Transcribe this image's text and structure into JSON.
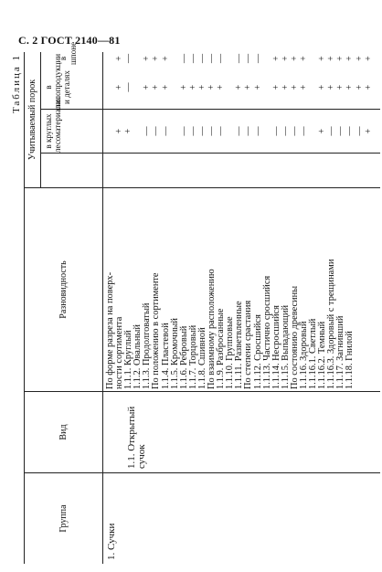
{
  "page_header": "С. 2 ГОСТ 2140—81",
  "table_label": "Таблица 1",
  "columns": {
    "group": "Группа",
    "kind": "Вид",
    "variety": "Разновидность",
    "threshold": "Учитываемый порок",
    "logs": "в круглых лесоматериалах",
    "sawn": "в пилопродукции и деталях",
    "veneer": "в шпоне"
  },
  "group_value": "1. Сучки",
  "kind_value": "1.1. Открытый сучок",
  "rows": [
    {
      "label": "По форме разреза на поверх-",
      "logs": "",
      "sawn": "",
      "veneer": ""
    },
    {
      "label": "ности сортимента",
      "logs": "+",
      "sawn": "+",
      "veneer": "+"
    },
    {
      "label": "1.1.1. Круглый",
      "logs": "+",
      "sawn": "—",
      "veneer": "—"
    },
    {
      "label": "1.1.2. Овальный",
      "logs": "",
      "sawn": "",
      "veneer": ""
    },
    {
      "label": "1.1.3. Продолговатый",
      "logs": "—",
      "sawn": "+",
      "veneer": "+"
    },
    {
      "label": "По положению в сортименте",
      "logs": "—",
      "sawn": "+",
      "veneer": "+"
    },
    {
      "label": "1.1.4. Пластевой",
      "logs": "—",
      "sawn": "+",
      "veneer": "+"
    },
    {
      "label": "1.1.5. Кромочный",
      "logs": "",
      "sawn": "",
      "veneer": ""
    },
    {
      "label": "1.1.6. Ребровый",
      "logs": "—",
      "sawn": "+",
      "veneer": "—"
    },
    {
      "label": "1.1.7. Торцовый",
      "logs": "—",
      "sawn": "+",
      "veneer": "—"
    },
    {
      "label": "1.1.8. Сшивной",
      "logs": "—",
      "sawn": "+",
      "veneer": "—"
    },
    {
      "label": "По взаимному расположению",
      "logs": "—",
      "sawn": "+",
      "veneer": "—"
    },
    {
      "label": "1.1.9. Разбросанные",
      "logs": "—",
      "sawn": "+",
      "veneer": "—"
    },
    {
      "label": "1.1.10. Групповые",
      "logs": "",
      "sawn": "",
      "veneer": ""
    },
    {
      "label": "1.1.11. Разветвленные",
      "logs": "—",
      "sawn": "+",
      "veneer": "—"
    },
    {
      "label": "По степени срастания",
      "logs": "—",
      "sawn": "+",
      "veneer": "—"
    },
    {
      "label": "1.1.12. Сросшийся",
      "logs": "—",
      "sawn": "+",
      "veneer": "—"
    },
    {
      "label": "1.1.13. Частично сросшийся",
      "logs": "",
      "sawn": "",
      "veneer": ""
    },
    {
      "label": "1.1.14. Несросшийся",
      "logs": "—",
      "sawn": "+",
      "veneer": "+"
    },
    {
      "label": "1.1.15. Выпадающий",
      "logs": "—",
      "sawn": "+",
      "veneer": "+"
    },
    {
      "label": "По состоянию древесины",
      "logs": "—",
      "sawn": "+",
      "veneer": "+"
    },
    {
      "label": "1.1.16. Здоровый",
      "logs": "—",
      "sawn": "+",
      "veneer": "+"
    },
    {
      "label": "1.1.16.1. Светлый",
      "logs": "",
      "sawn": "",
      "veneer": ""
    },
    {
      "label": "1.1.16.2. Темный",
      "logs": "+",
      "sawn": "+",
      "veneer": "+"
    },
    {
      "label": "1.1.16.3. Здоровый с трещинами",
      "logs": "—",
      "sawn": "+",
      "veneer": "+"
    },
    {
      "label": "1.1.17. Загнивший",
      "logs": "—",
      "sawn": "+",
      "veneer": "+"
    },
    {
      "label": "1.1.18. Гнилой",
      "logs": "—",
      "sawn": "+",
      "veneer": "+"
    },
    {
      "label": "",
      "logs": "—",
      "sawn": "+",
      "veneer": "+"
    },
    {
      "label": "",
      "logs": "+",
      "sawn": "+",
      "veneer": "+"
    }
  ]
}
